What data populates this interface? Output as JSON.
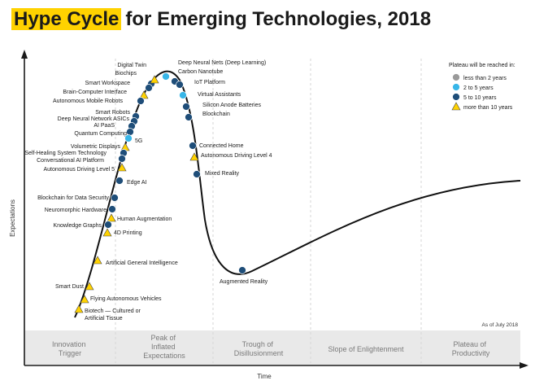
{
  "title": {
    "highlight": "Hype Cycle",
    "rest": "for Emerging Technologies, 2018",
    "highlight_color": "#ffd200"
  },
  "axes": {
    "y_label": "Expectations",
    "x_label": "Time"
  },
  "phases": [
    {
      "lines": [
        "Innovation",
        "Trigger"
      ]
    },
    {
      "lines": [
        "Peak of",
        "Inflated",
        "Expectations"
      ]
    },
    {
      "lines": [
        "Trough of",
        "Disillusionment"
      ]
    },
    {
      "lines": [
        "Slope of Enlightenment"
      ]
    },
    {
      "lines": [
        "Plateau of",
        "Productivity"
      ]
    }
  ],
  "as_of": "As of July 2018",
  "legend": {
    "title": "Plateau will be reached in:",
    "items": [
      {
        "key": "lt2",
        "label": "less than 2 years",
        "color": "#9a9a9a",
        "shape": "circle"
      },
      {
        "key": "2to5",
        "label": "2 to 5 years",
        "color": "#38b6e8",
        "shape": "circle"
      },
      {
        "key": "5to10",
        "label": "5 to 10 years",
        "color": "#1f4e79",
        "shape": "circle"
      },
      {
        "key": "gt10",
        "label": "more than 10 years",
        "color": "#ffd200",
        "shape": "triangle"
      }
    ]
  },
  "technologies": [
    {
      "name": "Digital Twin",
      "cat": "5to10"
    },
    {
      "name": "Biochips",
      "cat": "gt10"
    },
    {
      "name": "Smart Workspace",
      "cat": "5to10"
    },
    {
      "name": "Brain-Computer Interface",
      "cat": "gt10"
    },
    {
      "name": "Autonomous Mobile Robots",
      "cat": "5to10"
    },
    {
      "name": "Smart Robots",
      "cat": "5to10"
    },
    {
      "name": "Deep Neural Network ASICs",
      "cat": "5to10"
    },
    {
      "name": "AI PaaS",
      "cat": "5to10"
    },
    {
      "name": "Quantum Computing",
      "cat": "5to10"
    },
    {
      "name": "Volumetric Displays",
      "cat": "gt10"
    },
    {
      "name": "5G",
      "cat": "2to5"
    },
    {
      "name": "Self-Healing System Technology",
      "cat": "5to10"
    },
    {
      "name": "Conversational AI Platform",
      "cat": "5to10"
    },
    {
      "name": "Autonomous Driving Level 5",
      "cat": "gt10"
    },
    {
      "name": "Edge AI",
      "cat": "5to10"
    },
    {
      "name": "Blockchain for Data Security",
      "cat": "5to10"
    },
    {
      "name": "Neuromorphic Hardware",
      "cat": "5to10"
    },
    {
      "name": "Human Augmentation",
      "cat": "gt10"
    },
    {
      "name": "Knowledge Graphs",
      "cat": "5to10"
    },
    {
      "name": "4D Printing",
      "cat": "gt10"
    },
    {
      "name": "Artificial General Intelligence",
      "cat": "gt10"
    },
    {
      "name": "Smart Dust",
      "cat": "gt10"
    },
    {
      "name": "Flying Autonomous Vehicles",
      "cat": "gt10"
    },
    {
      "name": "Biotech — Cultured or Artificial Tissue",
      "cat": "gt10"
    },
    {
      "name": "Deep Neural Nets (Deep Learning)",
      "cat": "2to5"
    },
    {
      "name": "Carbon Nanotube",
      "cat": "5to10"
    },
    {
      "name": "IoT Platform",
      "cat": "5to10"
    },
    {
      "name": "Virtual Assistants",
      "cat": "2to5"
    },
    {
      "name": "Silicon Anode Batteries",
      "cat": "5to10"
    },
    {
      "name": "Blockchain",
      "cat": "5to10"
    },
    {
      "name": "Connected Home",
      "cat": "5to10"
    },
    {
      "name": "Autonomous Driving Level 4",
      "cat": "gt10"
    },
    {
      "name": "Mixed Reality",
      "cat": "5to10"
    },
    {
      "name": "Augmented Reality",
      "cat": "5to10"
    }
  ]
}
